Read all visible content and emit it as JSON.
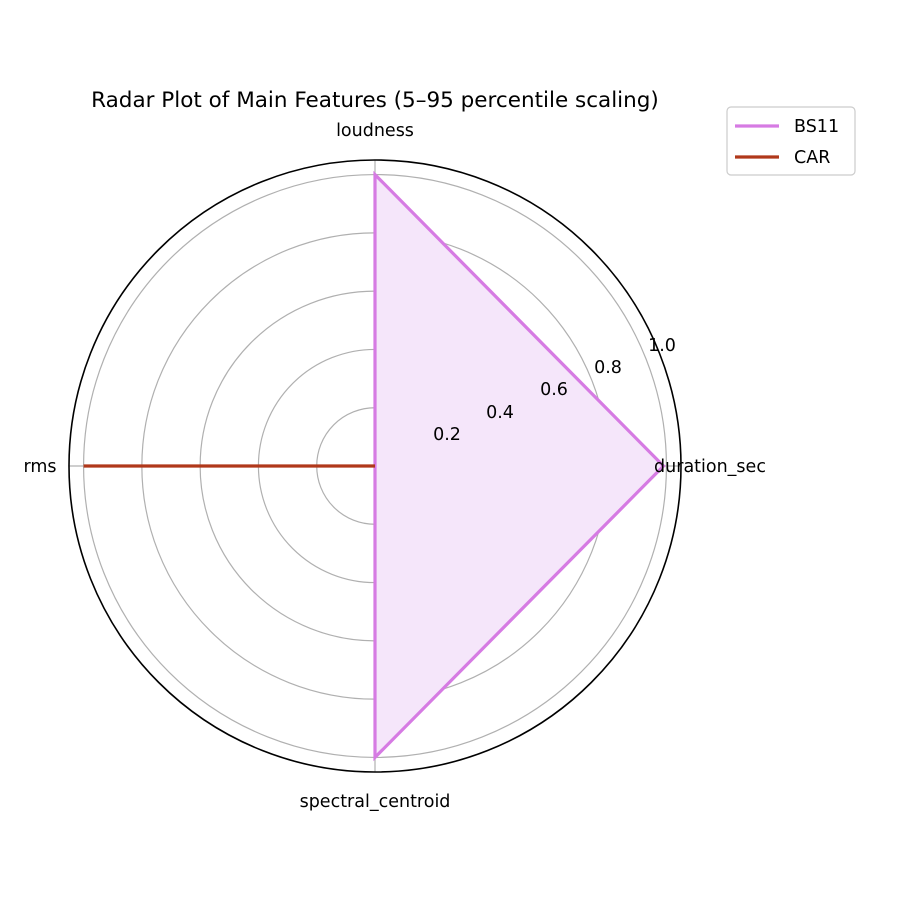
{
  "chart_data": {
    "type": "radar",
    "title": "Radar Plot of Main Features (5–95 percentile scaling)",
    "categories": [
      "duration_sec",
      "loudness",
      "rms",
      "spectral_centroid"
    ],
    "series": [
      {
        "name": "BS11",
        "values": [
          0.99,
          1.0,
          0.0,
          1.0
        ],
        "color": "#d67be3",
        "fill": "#f5e6fa"
      },
      {
        "name": "CAR",
        "values": [
          0.0,
          0.0,
          1.0,
          0.0
        ],
        "color": "#b0381a"
      }
    ],
    "radial_ticks": [
      0.2,
      0.4,
      0.6,
      0.8,
      1.0
    ],
    "radial_tick_labels": [
      "0.2",
      "0.4",
      "0.6",
      "0.8",
      "1.0"
    ],
    "rlim": [
      0,
      1.05
    ],
    "grid": true,
    "legend_position": "upper right (outside)"
  },
  "colors": {
    "grid": "#b0b0b0",
    "spine": "#000000"
  }
}
